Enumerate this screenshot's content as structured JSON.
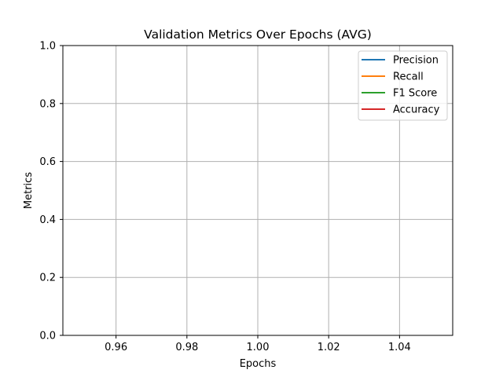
{
  "chart_data": {
    "type": "line",
    "title": "Validation Metrics Over Epochs (AVG)",
    "xlabel": "Epochs",
    "ylabel": "Metrics",
    "xlim": [
      0.945,
      1.055
    ],
    "ylim": [
      0.0,
      1.0
    ],
    "xticks": [
      0.96,
      0.98,
      1.0,
      1.02,
      1.04
    ],
    "xtick_labels": [
      "0.96",
      "0.98",
      "1.00",
      "1.02",
      "1.04"
    ],
    "yticks": [
      0.0,
      0.2,
      0.4,
      0.6,
      0.8,
      1.0
    ],
    "ytick_labels": [
      "0.0",
      "0.2",
      "0.4",
      "0.6",
      "0.8",
      "1.0"
    ],
    "grid": true,
    "legend_position": "top-right",
    "series": [
      {
        "name": "Precision",
        "color": "#1f77b4",
        "x": [],
        "y": []
      },
      {
        "name": "Recall",
        "color": "#ff7f0e",
        "x": [],
        "y": []
      },
      {
        "name": "F1 Score",
        "color": "#2ca02c",
        "x": [],
        "y": []
      },
      {
        "name": "Accuracy",
        "color": "#d62728",
        "x": [],
        "y": []
      }
    ]
  }
}
